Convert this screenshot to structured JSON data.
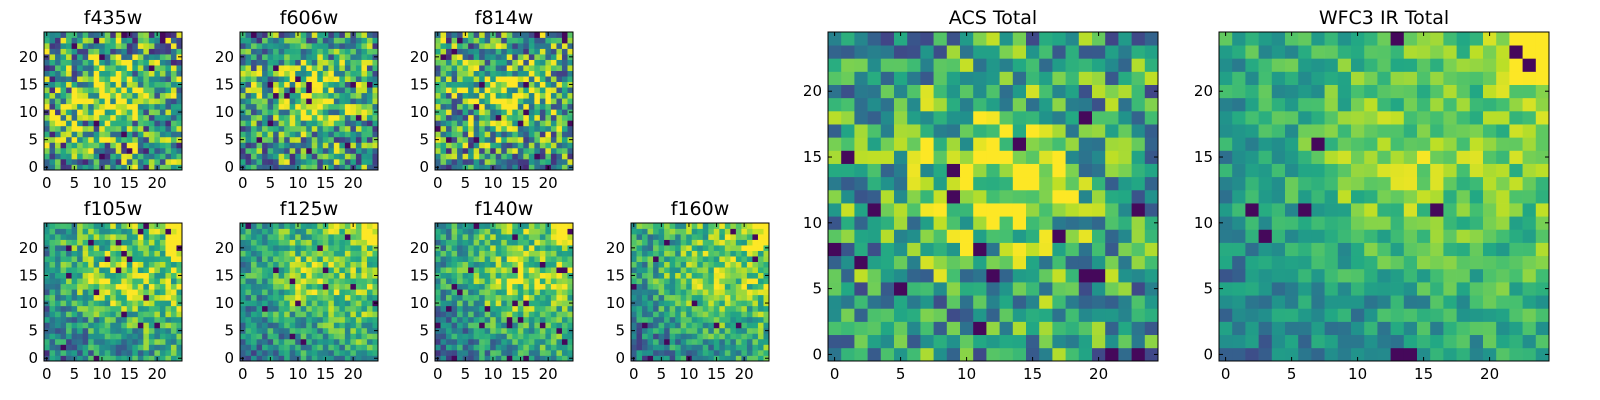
{
  "chart_data": [
    {
      "type": "heatmap",
      "title": "f435w",
      "grid": [
        25,
        25
      ],
      "seed": 11,
      "structure": "center",
      "noise": 0.95,
      "xticks": [
        "0",
        "5",
        "10",
        "15",
        "20"
      ],
      "yticks": [
        "0",
        "5",
        "10",
        "15",
        "20"
      ],
      "colormap": "viridis"
    },
    {
      "type": "heatmap",
      "title": "f606w",
      "grid": [
        25,
        25
      ],
      "seed": 23,
      "structure": "center",
      "noise": 0.85,
      "xticks": [
        "0",
        "5",
        "10",
        "15",
        "20"
      ],
      "yticks": [
        "0",
        "5",
        "10",
        "15",
        "20"
      ],
      "colormap": "viridis"
    },
    {
      "type": "heatmap",
      "title": "f814w",
      "grid": [
        25,
        25
      ],
      "seed": 37,
      "structure": "center",
      "noise": 0.9,
      "xticks": [
        "0",
        "5",
        "10",
        "15",
        "20"
      ],
      "yticks": [
        "0",
        "5",
        "10",
        "15",
        "20"
      ],
      "colormap": "viridis"
    },
    {
      "type": "heatmap",
      "title": "f105w",
      "grid": [
        25,
        25
      ],
      "seed": 41,
      "structure": "corner",
      "noise": 0.55,
      "xticks": [
        "0",
        "5",
        "10",
        "15",
        "20"
      ],
      "yticks": [
        "0",
        "5",
        "10",
        "15",
        "20"
      ],
      "colormap": "viridis"
    },
    {
      "type": "heatmap",
      "title": "f125w",
      "grid": [
        25,
        25
      ],
      "seed": 53,
      "structure": "corner",
      "noise": 0.5,
      "xticks": [
        "0",
        "5",
        "10",
        "15",
        "20"
      ],
      "yticks": [
        "0",
        "5",
        "10",
        "15",
        "20"
      ],
      "colormap": "viridis"
    },
    {
      "type": "heatmap",
      "title": "f140w",
      "grid": [
        25,
        25
      ],
      "seed": 67,
      "structure": "corner",
      "noise": 0.5,
      "xticks": [
        "0",
        "5",
        "10",
        "15",
        "20"
      ],
      "yticks": [
        "0",
        "5",
        "10",
        "15",
        "20"
      ],
      "colormap": "viridis"
    },
    {
      "type": "heatmap",
      "title": "f160w",
      "grid": [
        25,
        25
      ],
      "seed": 79,
      "structure": "corner",
      "noise": 0.5,
      "xticks": [
        "0",
        "5",
        "10",
        "15",
        "20"
      ],
      "yticks": [
        "0",
        "5",
        "10",
        "15",
        "20"
      ],
      "colormap": "viridis"
    },
    {
      "type": "heatmap",
      "title": "ACS Total",
      "grid": [
        25,
        25
      ],
      "seed": 83,
      "structure": "center",
      "noise": 0.7,
      "xticks": [
        "0",
        "5",
        "10",
        "15",
        "20"
      ],
      "yticks": [
        "0",
        "5",
        "10",
        "15",
        "20"
      ],
      "colormap": "viridis"
    },
    {
      "type": "heatmap",
      "title": "WFC3 IR Total",
      "grid": [
        25,
        25
      ],
      "seed": 97,
      "structure": "corner",
      "noise": 0.35,
      "xticks": [
        "0",
        "5",
        "10",
        "15",
        "20"
      ],
      "yticks": [
        "0",
        "5",
        "10",
        "15",
        "20"
      ],
      "colormap": "viridis"
    }
  ]
}
